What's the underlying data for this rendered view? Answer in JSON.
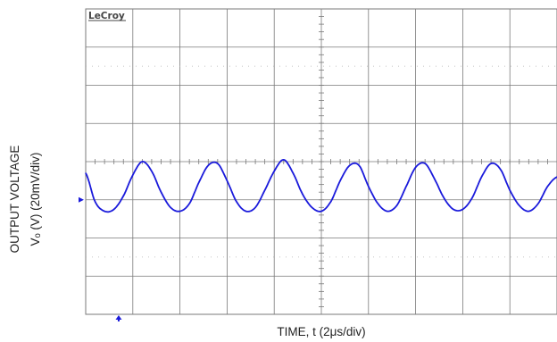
{
  "chart_data": {
    "type": "line",
    "brand_logo": "LeCroy",
    "xlabel": "TIME, t (2μs/div)",
    "ylabel_line1": "OUTPUT VOLTAGE",
    "ylabel_line2": "Vₒ (V) (20mV/div)",
    "x_unit": "μs",
    "y_unit": "mV",
    "x_scale_per_div": 2,
    "y_scale_per_div": 20,
    "x_divisions": 10,
    "y_divisions": 8,
    "xlim": [
      0,
      20
    ],
    "ylim": [
      -60,
      100
    ],
    "grid": true,
    "ground_marker_y": 0,
    "trigger_marker_x": 1.4,
    "series": [
      {
        "color": "#1a1adb",
        "x": [
          0.0,
          0.4,
          0.8,
          1.2,
          1.6,
          2.0,
          2.4,
          2.8,
          3.2,
          3.6,
          4.0,
          4.4,
          4.8,
          5.2,
          5.6,
          6.0,
          6.4,
          6.8,
          7.2,
          7.6,
          8.0,
          8.4,
          8.8,
          9.2,
          9.6,
          10.0,
          10.4,
          10.8,
          11.2,
          11.6,
          12.0,
          12.4,
          12.8,
          13.2,
          13.6,
          14.0,
          14.4,
          14.8,
          15.2,
          15.6,
          16.0,
          16.4,
          16.8,
          17.2,
          17.6,
          18.0,
          18.4,
          18.8,
          19.2,
          19.6,
          20.0
        ],
        "values": [
          14,
          -1,
          -6,
          -5,
          2,
          13,
          20,
          15,
          4,
          -4,
          -6,
          -2,
          9,
          18,
          19,
          10,
          -1,
          -6,
          -4,
          5,
          15,
          21,
          14,
          3,
          -4,
          -6,
          -1,
          10,
          18,
          18,
          7,
          -2,
          -6,
          -3,
          7,
          17,
          19,
          11,
          1,
          -5,
          -5,
          1,
          12,
          19,
          16,
          5,
          -3,
          -6,
          -2,
          7,
          12
        ]
      }
    ]
  }
}
